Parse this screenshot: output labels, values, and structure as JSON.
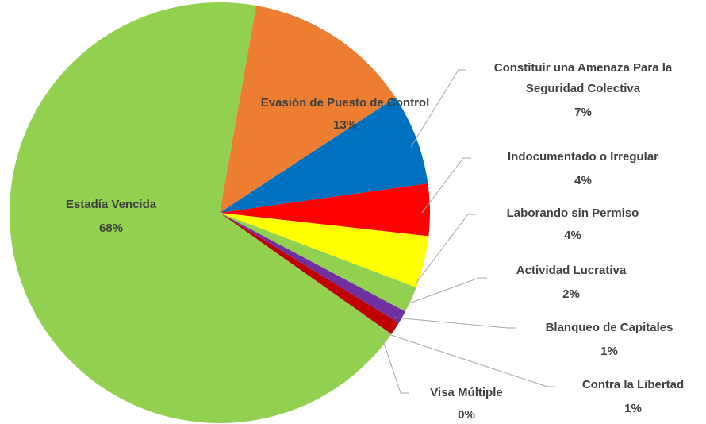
{
  "chart_data": {
    "type": "pie",
    "categories": [
      "Estadía Vencida",
      "Evasión de Puesto de Control",
      "Constituir una Amenaza Para la Seguridad Colectiva",
      "Indocumentado o Irregular",
      "Laborando sin Permiso",
      "Actividad Lucrativa",
      "Blanqueo de Capitales",
      "Contra la Libertad",
      "Visa Múltiple"
    ],
    "values": [
      68,
      13,
      7,
      4,
      4,
      2,
      1,
      1,
      0
    ],
    "value_labels": [
      "68%",
      "13%",
      "7%",
      "4%",
      "4%",
      "2%",
      "1%",
      "1%",
      "0%"
    ],
    "colors": [
      "#92d050",
      "#ed7d31",
      "#0070c0",
      "#ff0000",
      "#ffff00",
      "#92d050",
      "#7030a0",
      "#c00000",
      "#00b0f0"
    ]
  }
}
